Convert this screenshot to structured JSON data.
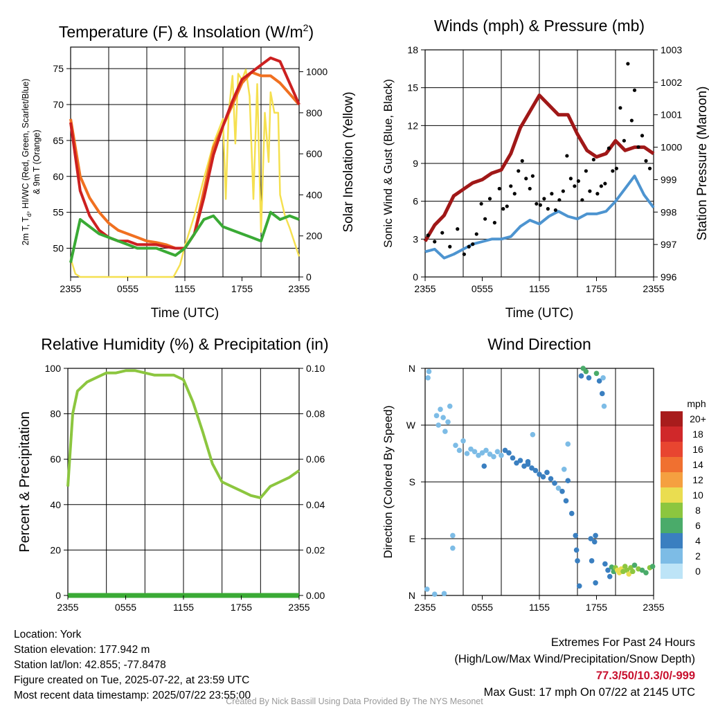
{
  "colors": {
    "temp": "#cc2020",
    "dewpoint": "#3aaa35",
    "hiwc": "#b01818",
    "t9": "#f07020",
    "solar": "#f5e050",
    "wind": "#4d94d0",
    "gust": "#000000",
    "pressure": "#a01818",
    "rh": "#8cc63f",
    "precip": "#3aaa35"
  },
  "chart_data": [
    {
      "type": "line",
      "title": "Temperature (F) & Insolation (W/m",
      "title_sup": "2",
      "title_close": ")",
      "xlabel": "Time (UTC)",
      "ylabel_line1": "2m T, T",
      "ylabel_sub": "d",
      "ylabel_line1b": ", HI/WC (Red, Green, Scarlet/Blue)",
      "ylabel_line2": "& 9m T (Orange)",
      "y2label": "Solar Insolation (Yellow)",
      "xticks": [
        "2355",
        "0555",
        "1155",
        "1755",
        "2355"
      ],
      "ylim": [
        46,
        78
      ],
      "yticks": [
        50,
        55,
        60,
        65,
        70,
        75
      ],
      "y2lim": [
        0,
        1120
      ],
      "y2ticks": [
        0,
        200,
        400,
        600,
        800,
        1000
      ],
      "x": [
        0,
        1,
        2,
        3,
        4,
        5,
        6,
        7,
        8,
        9,
        10,
        11,
        12,
        13,
        14,
        15,
        16,
        17,
        18,
        19,
        20,
        21,
        22,
        23,
        24
      ],
      "series": [
        {
          "key": "t9",
          "values": [
            68,
            60,
            57,
            55,
            53.5,
            52.5,
            52,
            51.5,
            51,
            50.8,
            50.5,
            50,
            50,
            52,
            58,
            64,
            67,
            70,
            73,
            74.5,
            74,
            74,
            73,
            71.5,
            70
          ]
        },
        {
          "key": "temp",
          "values": [
            67.5,
            58,
            54.5,
            52.5,
            51.5,
            51,
            51,
            50.5,
            50.5,
            50.5,
            50.2,
            50,
            50,
            52,
            57,
            63,
            67,
            70.5,
            73.5,
            74.5,
            75.5,
            76.5,
            76,
            73,
            70
          ]
        },
        {
          "key": "dewpoint",
          "values": [
            48,
            54,
            53,
            52,
            51.5,
            51,
            50.5,
            50,
            50,
            50,
            49.5,
            49,
            50,
            52,
            54,
            54.5,
            53,
            52.5,
            52,
            51.5,
            51,
            55,
            54,
            54.5,
            54
          ]
        }
      ],
      "solar": {
        "x": [
          0,
          0.5,
          1,
          2,
          4,
          6,
          8,
          10.8,
          11.5,
          12,
          13,
          14,
          15,
          16,
          16.3,
          16.6,
          17,
          17.3,
          17.6,
          18,
          18.4,
          18.8,
          19.2,
          19.6,
          20,
          20.4,
          20.8,
          21,
          21.4,
          21.8,
          22,
          22.5,
          23,
          24
        ],
        "values": [
          90,
          15,
          0,
          0,
          0,
          0,
          0,
          0,
          60,
          150,
          300,
          480,
          650,
          770,
          380,
          800,
          980,
          650,
          990,
          960,
          1010,
          880,
          380,
          940,
          220,
          800,
          560,
          900,
          800,
          800,
          400,
          300,
          240,
          100
        ]
      }
    },
    {
      "type": "line",
      "title": "Winds (mph) & Pressure (mb)",
      "xlabel": "Time (UTC)",
      "ylabel": "Sonic Wind & Gust (Blue, Black)",
      "y2label": "Station Pressure (Maroon)",
      "xticks": [
        "2355",
        "0555",
        "1155",
        "1755",
        "2355"
      ],
      "ylim": [
        0,
        18
      ],
      "yticks": [
        0,
        3,
        6,
        9,
        12,
        15,
        18
      ],
      "y2lim": [
        996,
        1003
      ],
      "y2ticks": [
        996,
        997,
        998,
        999,
        1000,
        1001,
        1002,
        1003
      ],
      "x": [
        0,
        1,
        2,
        3,
        4,
        5,
        6,
        7,
        8,
        9,
        10,
        11,
        12,
        13,
        14,
        15,
        16,
        17,
        18,
        19,
        20,
        21,
        22,
        23,
        24
      ],
      "series": [
        {
          "key": "wind",
          "values": [
            2,
            2.2,
            1.5,
            1.8,
            2.2,
            2.6,
            2.8,
            3,
            3,
            3.2,
            4,
            4.5,
            4.2,
            4.8,
            5.2,
            4.8,
            4.6,
            5,
            5,
            5.2,
            6,
            7,
            8,
            6.5,
            5.5
          ]
        },
        {
          "key": "pressure",
          "values": [
            997.1,
            997.6,
            997.9,
            998.5,
            998.7,
            998.9,
            999.0,
            999.2,
            999.3,
            999.8,
            1000.6,
            1001.1,
            1001.6,
            1001.3,
            1001.0,
            1001.0,
            1000.4,
            999.9,
            999.7,
            999.8,
            1000.2,
            999.9,
            1000.0,
            1000.0,
            999.8
          ]
        }
      ],
      "gust": {
        "x": [
          0.3,
          1,
          1.8,
          2.6,
          3.4,
          4.1,
          4.6,
          5,
          5.4,
          5.9,
          6.3,
          6.8,
          7.3,
          7.8,
          8.2,
          8.6,
          9,
          9.4,
          9.8,
          10.2,
          10.6,
          11,
          11.3,
          11.7,
          12.1,
          12.5,
          12.9,
          13.3,
          13.7,
          14.1,
          14.5,
          14.9,
          15.3,
          15.7,
          16.1,
          16.5,
          16.9,
          17.3,
          17.7,
          18.1,
          18.5,
          18.9,
          19.3,
          19.7,
          20.1,
          20.5,
          20.9,
          21.3,
          21.7,
          22,
          22.4,
          22.8,
          23.2,
          23.6
        ],
        "values": [
          3.3,
          2.8,
          3.5,
          2.4,
          3.8,
          1.8,
          2.4,
          2.6,
          3.4,
          5.8,
          4.6,
          6.2,
          4.3,
          7,
          5.4,
          5.6,
          7.2,
          6.6,
          8.4,
          9.2,
          7.8,
          7,
          8,
          5.8,
          5.7,
          6.2,
          5.4,
          6.6,
          5.3,
          6.1,
          6.8,
          9.6,
          7.8,
          7.2,
          7.6,
          6.1,
          8.4,
          6.8,
          9.3,
          6.6,
          7.2,
          7.4,
          10.2,
          8.4,
          8.6,
          13.4,
          10.8,
          16.9,
          12.4,
          14.8,
          10.3,
          11.2,
          9.2,
          8.6
        ]
      }
    },
    {
      "type": "line",
      "title": "Relative Humidity (%) & Precipitation (in)",
      "ylabel": "Percent & Precipitation",
      "xticks": [
        "2355",
        "0555",
        "1155",
        "1755",
        "2355"
      ],
      "ylim": [
        0,
        100
      ],
      "yticks": [
        0,
        20,
        40,
        60,
        80,
        100
      ],
      "y2lim": [
        0,
        0.1
      ],
      "y2ticks": [
        "0.00",
        "0.02",
        "0.04",
        "0.06",
        "0.08",
        "0.10"
      ],
      "x": [
        0,
        0.5,
        1,
        1.5,
        2,
        3,
        4,
        5,
        6,
        7,
        8,
        9,
        10,
        11,
        12,
        13,
        14,
        15,
        16,
        17,
        18,
        19,
        20,
        21,
        22,
        23,
        24
      ],
      "series": [
        {
          "key": "rh",
          "values": [
            48,
            80,
            90,
            92,
            94,
            96,
            98,
            98,
            99,
            99,
            98,
            97,
            97,
            97,
            95,
            85,
            72,
            58,
            50,
            48,
            46,
            44,
            43,
            48,
            50,
            52,
            55
          ]
        },
        {
          "key": "precip",
          "values": [
            0,
            0,
            0,
            0,
            0,
            0,
            0,
            0,
            0,
            0,
            0,
            0,
            0,
            0,
            0,
            0,
            0,
            0,
            0,
            0,
            0,
            0,
            0,
            0,
            0,
            0,
            0
          ]
        }
      ]
    },
    {
      "type": "scatter",
      "title": "Wind Direction",
      "ylabel": "Direction (Colored By Speed)",
      "xticks": [
        "2355",
        "0555",
        "1155",
        "1755",
        "2355"
      ],
      "ylim": [
        0,
        360
      ],
      "yticks": [
        "N",
        "E",
        "S",
        "W",
        "N"
      ],
      "colorbar_title": "mph",
      "colorbar_labels": [
        "20+",
        "18",
        "16",
        "14",
        "12",
        "10",
        "8",
        "6",
        "4",
        "2",
        "0"
      ],
      "colorbar_colors": [
        "#a81c1c",
        "#d0282a",
        "#e84530",
        "#f07030",
        "#f5a040",
        "#eadd50",
        "#8cc63f",
        "#4aab6a",
        "#3a7fc0",
        "#7dbce6",
        "#bde4f7"
      ],
      "points": [
        {
          "x": 0.2,
          "dir": 10,
          "spd": 2
        },
        {
          "x": 0.3,
          "dir": 345,
          "spd": 1
        },
        {
          "x": 0.4,
          "dir": 355,
          "spd": 1
        },
        {
          "x": 1.2,
          "dir": 285,
          "spd": 2
        },
        {
          "x": 1.4,
          "dir": 270,
          "spd": 2
        },
        {
          "x": 1.6,
          "dir": 295,
          "spd": 2
        },
        {
          "x": 1.9,
          "dir": 282,
          "spd": 2
        },
        {
          "x": 2.1,
          "dir": 260,
          "spd": 2
        },
        {
          "x": 2.4,
          "dir": 275,
          "spd": 1
        },
        {
          "x": 2.6,
          "dir": 300,
          "spd": 2
        },
        {
          "x": 1.0,
          "dir": 2,
          "spd": 1
        },
        {
          "x": 2.0,
          "dir": 3,
          "spd": 1
        },
        {
          "x": 2.9,
          "dir": 95,
          "spd": 1
        },
        {
          "x": 2.9,
          "dir": 75,
          "spd": 1
        },
        {
          "x": 3.2,
          "dir": 238,
          "spd": 2
        },
        {
          "x": 3.6,
          "dir": 230,
          "spd": 2
        },
        {
          "x": 4.0,
          "dir": 245,
          "spd": 1
        },
        {
          "x": 4.4,
          "dir": 225,
          "spd": 2
        },
        {
          "x": 4.8,
          "dir": 232,
          "spd": 2
        },
        {
          "x": 5.2,
          "dir": 228,
          "spd": 2
        },
        {
          "x": 5.6,
          "dir": 222,
          "spd": 2
        },
        {
          "x": 6.0,
          "dir": 226,
          "spd": 2
        },
        {
          "x": 6.4,
          "dir": 230,
          "spd": 2
        },
        {
          "x": 6.8,
          "dir": 224,
          "spd": 2
        },
        {
          "x": 7.2,
          "dir": 220,
          "spd": 2
        },
        {
          "x": 7.6,
          "dir": 228,
          "spd": 2
        },
        {
          "x": 8.0,
          "dir": 222,
          "spd": 2
        },
        {
          "x": 8.4,
          "dir": 230,
          "spd": 3
        },
        {
          "x": 8.8,
          "dir": 226,
          "spd": 3
        },
        {
          "x": 9.2,
          "dir": 218,
          "spd": 3
        },
        {
          "x": 9.6,
          "dir": 210,
          "spd": 3
        },
        {
          "x": 10.0,
          "dir": 214,
          "spd": 3
        },
        {
          "x": 10.4,
          "dir": 205,
          "spd": 4
        },
        {
          "x": 10.8,
          "dir": 208,
          "spd": 4
        },
        {
          "x": 11.2,
          "dir": 202,
          "spd": 4
        },
        {
          "x": 11.6,
          "dir": 198,
          "spd": 4
        },
        {
          "x": 12.0,
          "dir": 192,
          "spd": 4
        },
        {
          "x": 12.4,
          "dir": 188,
          "spd": 4
        },
        {
          "x": 12.8,
          "dir": 195,
          "spd": 4
        },
        {
          "x": 13.2,
          "dir": 185,
          "spd": 3
        },
        {
          "x": 13.6,
          "dir": 178,
          "spd": 3
        },
        {
          "x": 14.0,
          "dir": 170,
          "spd": 2
        },
        {
          "x": 14.4,
          "dir": 165,
          "spd": 3
        },
        {
          "x": 14.6,
          "dir": 200,
          "spd": 2
        },
        {
          "x": 14.8,
          "dir": 150,
          "spd": 3
        },
        {
          "x": 15.0,
          "dir": 182,
          "spd": 3
        },
        {
          "x": 15.4,
          "dir": 130,
          "spd": 3
        },
        {
          "x": 15.8,
          "dir": 95,
          "spd": 4
        },
        {
          "x": 15.9,
          "dir": 72,
          "spd": 3
        },
        {
          "x": 16.0,
          "dir": 55,
          "spd": 3
        },
        {
          "x": 16.2,
          "dir": 15,
          "spd": 4
        },
        {
          "x": 16.4,
          "dir": 348,
          "spd": 4
        },
        {
          "x": 16.6,
          "dir": 360,
          "spd": 6
        },
        {
          "x": 16.9,
          "dir": 355,
          "spd": 6
        },
        {
          "x": 17.2,
          "dir": 345,
          "spd": 3
        },
        {
          "x": 17.4,
          "dir": 90,
          "spd": 3
        },
        {
          "x": 17.8,
          "dir": 85,
          "spd": 4
        },
        {
          "x": 17.5,
          "dir": 55,
          "spd": 4
        },
        {
          "x": 17.9,
          "dir": 95,
          "spd": 3
        },
        {
          "x": 17.9,
          "dir": 20,
          "spd": 4
        },
        {
          "x": 18.0,
          "dir": 352,
          "spd": 6
        },
        {
          "x": 18.3,
          "dir": 340,
          "spd": 4
        },
        {
          "x": 18.6,
          "dir": 320,
          "spd": 3
        },
        {
          "x": 18.8,
          "dir": 300,
          "spd": 2
        },
        {
          "x": 18.7,
          "dir": 345,
          "spd": 2
        },
        {
          "x": 18.9,
          "dir": 50,
          "spd": 4
        },
        {
          "x": 19.2,
          "dir": 40,
          "spd": 3
        },
        {
          "x": 19.4,
          "dir": 30,
          "spd": 4
        },
        {
          "x": 19.6,
          "dir": 45,
          "spd": 5
        },
        {
          "x": 19.8,
          "dir": 38,
          "spd": 6
        },
        {
          "x": 20.0,
          "dir": 44,
          "spd": 7
        },
        {
          "x": 20.2,
          "dir": 40,
          "spd": 9
        },
        {
          "x": 20.4,
          "dir": 36,
          "spd": 10
        },
        {
          "x": 20.6,
          "dir": 42,
          "spd": 9
        },
        {
          "x": 20.8,
          "dir": 38,
          "spd": 8
        },
        {
          "x": 21.0,
          "dir": 46,
          "spd": 7
        },
        {
          "x": 21.2,
          "dir": 40,
          "spd": 8
        },
        {
          "x": 21.4,
          "dir": 34,
          "spd": 9
        },
        {
          "x": 21.6,
          "dir": 44,
          "spd": 7
        },
        {
          "x": 21.8,
          "dir": 38,
          "spd": 8
        },
        {
          "x": 22.0,
          "dir": 48,
          "spd": 6
        },
        {
          "x": 22.4,
          "dir": 42,
          "spd": 7
        },
        {
          "x": 22.8,
          "dir": 40,
          "spd": 6
        },
        {
          "x": 23.2,
          "dir": 36,
          "spd": 6
        },
        {
          "x": 23.6,
          "dir": 44,
          "spd": 7
        },
        {
          "x": 23.9,
          "dir": 46,
          "spd": 6
        },
        {
          "x": 6.2,
          "dir": 205,
          "spd": 3
        },
        {
          "x": 11.3,
          "dir": 255,
          "spd": 1
        },
        {
          "x": 10.8,
          "dir": 212,
          "spd": 4
        },
        {
          "x": 15.0,
          "dir": 240,
          "spd": 2
        }
      ]
    }
  ],
  "info": {
    "location": "Location: York",
    "elevation": "Station elevation: 177.942 m",
    "latlon": "Station lat/lon: 42.855; -77.8478",
    "created": "Figure created on Tue, 2025-07-22, at 23:59 UTC",
    "recent": "Most recent data timestamp: 2025/07/22 23:55:00"
  },
  "extremes": {
    "title": "Extremes For Past 24 Hours",
    "subtitle": "(High/Low/Max Wind/Precipitation/Snow Depth)",
    "values": "77.3/50/10.3/0/-999",
    "gust": "Max Gust: 17 mph On 07/22 at 2145 UTC"
  },
  "credit": "Created By Nick Bassill Using Data Provided By The NYS Mesonet"
}
